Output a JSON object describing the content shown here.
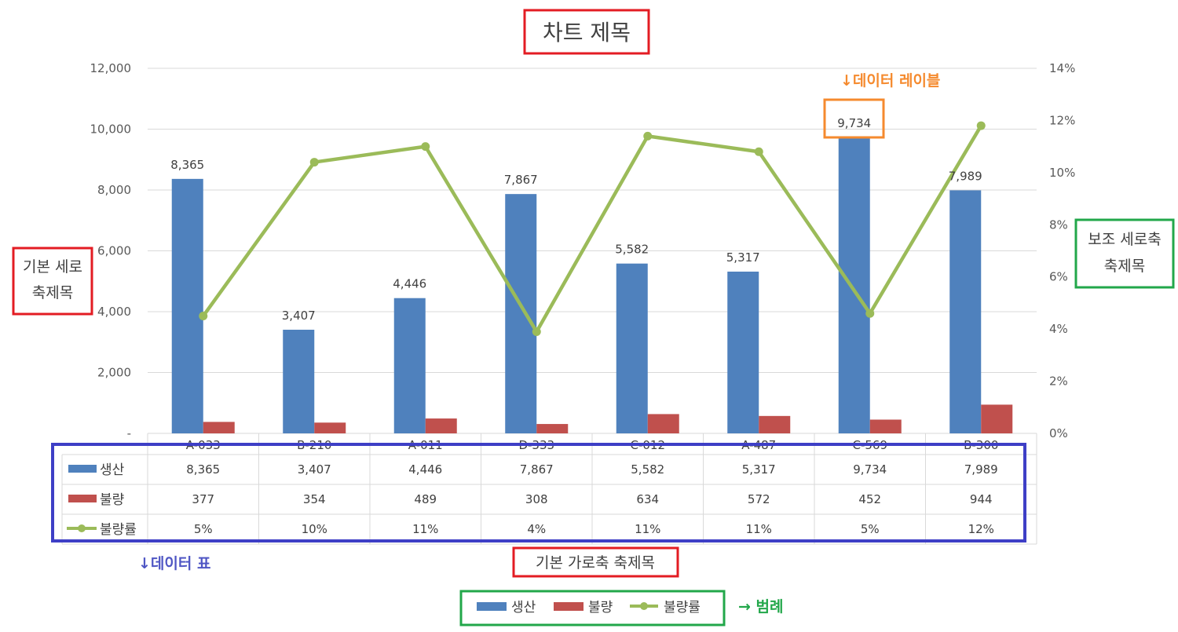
{
  "chart_data": {
    "type": "bar",
    "title": "차트 제목",
    "ylabel_lines": [
      "기본 세로",
      "축제목"
    ],
    "y2label_lines": [
      "보조 세로축",
      "축제목"
    ],
    "xlabel": "기본 가로축 축제목",
    "categories": [
      "A-033",
      "B-210",
      "A-011",
      "D-333",
      "C-012",
      "A-487",
      "C-569",
      "B-300"
    ],
    "ylim": [
      0,
      12000
    ],
    "y_ticks": [
      0,
      2000,
      4000,
      6000,
      8000,
      10000,
      12000
    ],
    "y_tick_labels": [
      "-",
      "2,000",
      "4,000",
      "6,000",
      "8,000",
      "10,000",
      "12,000"
    ],
    "y2lim": [
      0,
      14
    ],
    "y2_ticks": [
      0,
      2,
      4,
      6,
      8,
      10,
      12,
      14
    ],
    "y2_tick_labels": [
      "0%",
      "2%",
      "4%",
      "6%",
      "8%",
      "10%",
      "12%",
      "14%"
    ],
    "grid": true,
    "series": [
      {
        "name": "생산",
        "type": "bar",
        "axis": "primary",
        "color": "#4f81bd",
        "values": [
          8365,
          3407,
          4446,
          7867,
          5582,
          5317,
          9734,
          7989
        ],
        "labels": [
          "8,365",
          "3,407",
          "4,446",
          "7,867",
          "5,582",
          "5,317",
          "9,734",
          "7,989"
        ],
        "show_data_labels": true
      },
      {
        "name": "불량",
        "type": "bar",
        "axis": "primary",
        "color": "#c0504d",
        "values": [
          377,
          354,
          489,
          308,
          634,
          572,
          452,
          944
        ],
        "labels": [
          "377",
          "354",
          "489",
          "308",
          "634",
          "572",
          "452",
          "944"
        ],
        "show_data_labels": false
      },
      {
        "name": "불량률",
        "type": "line",
        "axis": "secondary",
        "color": "#9bbb59",
        "values": [
          4.5,
          10.4,
          11.0,
          3.9,
          11.4,
          10.8,
          4.6,
          11.8
        ],
        "labels": [
          "5%",
          "10%",
          "11%",
          "4%",
          "11%",
          "11%",
          "5%",
          "12%"
        ],
        "show_data_labels": false
      }
    ],
    "data_table": true,
    "legend": "bottom",
    "annotations": {
      "data_label": "↓데이터 레이블",
      "data_table": "↓데이터 표",
      "legend": "→ 범례"
    }
  }
}
